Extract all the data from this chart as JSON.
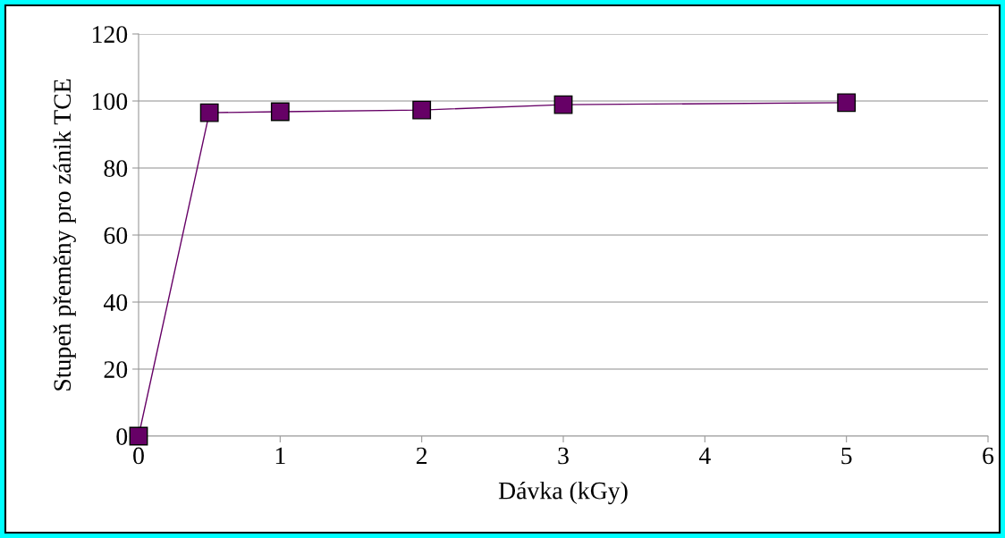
{
  "chart_data": {
    "type": "line",
    "xlabel": "Dávka (kGy)",
    "ylabel": "Stupeň přeměny pro zánik TCE",
    "x": [
      0,
      0.5,
      1,
      2,
      3,
      5
    ],
    "series": [
      {
        "color": "#660066",
        "values": [
          0,
          96.5,
          96.8,
          97.3,
          98.9,
          99.5
        ]
      }
    ],
    "xlim": [
      0,
      6
    ],
    "xticks": [
      0,
      1,
      2,
      3,
      4,
      5,
      6
    ],
    "ylim": [
      0,
      120
    ],
    "yticks": [
      0,
      20,
      40,
      60,
      80,
      100,
      120
    ],
    "grid": "y",
    "marker": "square",
    "line_style": "solid",
    "legend": false
  }
}
